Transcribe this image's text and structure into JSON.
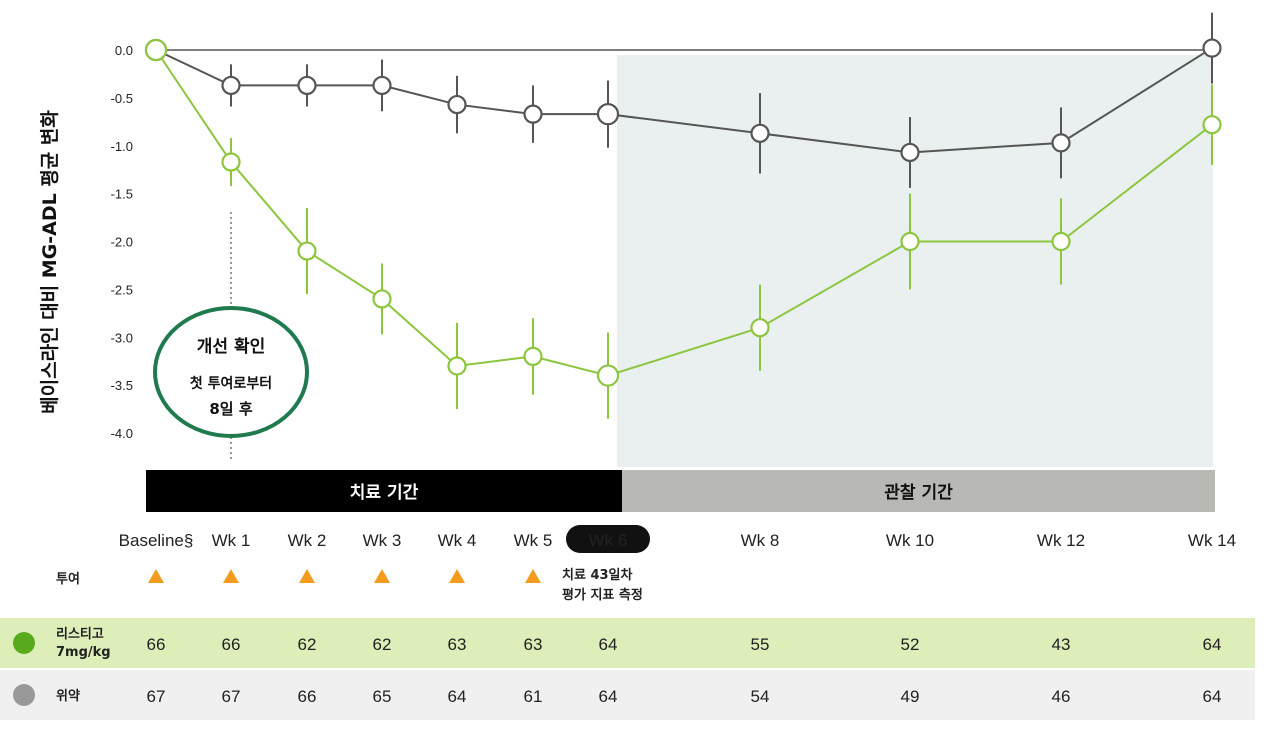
{
  "chart_data": {
    "type": "line",
    "ylabel": "베이스라인 대비 MG-ADL 평균 변화",
    "ylim": [
      -4.0,
      0.0
    ],
    "yticks": [
      "0.0",
      "-0.5",
      "-1.0",
      "-1.5",
      "-2.0",
      "-2.5",
      "-3.0",
      "-3.5",
      "-4.0"
    ],
    "categories": [
      "Baseline§",
      "Wk 1",
      "Wk 2",
      "Wk 3",
      "Wk 4",
      "Wk 5",
      "Wk 6",
      "Wk 8",
      "Wk 10",
      "Wk 12",
      "Wk 14"
    ],
    "x": [
      0,
      1,
      2,
      3,
      4,
      5,
      6,
      8,
      10,
      12,
      14
    ],
    "series": [
      {
        "name": "위약",
        "color": "#555555",
        "values": [
          0.0,
          -0.37,
          -0.37,
          -0.37,
          -0.57,
          -0.67,
          -0.67,
          -0.87,
          -1.07,
          -0.97,
          0.02
        ],
        "errors": [
          0.0,
          0.22,
          0.22,
          0.27,
          0.3,
          0.3,
          0.35,
          0.42,
          0.37,
          0.37,
          0.37
        ]
      },
      {
        "name": "리스티고 7mg/kg",
        "color": "#8cc63f",
        "values": [
          0.0,
          -1.17,
          -2.1,
          -2.6,
          -3.3,
          -3.2,
          -3.4,
          -2.9,
          -2.0,
          -2.0,
          -0.78
        ],
        "errors": [
          0.0,
          0.25,
          0.45,
          0.37,
          0.45,
          0.4,
          0.45,
          0.45,
          0.5,
          0.45,
          0.42
        ]
      }
    ],
    "bands": [
      {
        "label": "치료 기간",
        "x_from": 0,
        "x_to": 6,
        "color": "#000000",
        "text_color": "#ffffff"
      },
      {
        "label": "관찰 기간",
        "x_from": 6,
        "x_to": 14,
        "color": "#b8b8b4",
        "text_color": "#111111"
      }
    ],
    "observation_shade": "#eaf0ef",
    "highlight_tick": "Wk 6",
    "dosing": {
      "label": "투여",
      "at": [
        0,
        1,
        2,
        3,
        4,
        5
      ],
      "marker_color": "#f29b1d",
      "note_line1": "치료 43일차",
      "note_line2": "평가 지표 측정"
    },
    "callout": {
      "title": "개선 확인",
      "line1": "첫 투여로부터",
      "line2": "8일 후",
      "at_x": 1
    },
    "table": {
      "rows": [
        {
          "label_line1": "리스티고",
          "label_line2": "7mg/kg",
          "dot_color": "#5aaa1e",
          "bg": "#ddeeb8",
          "values": [
            "66",
            "66",
            "62",
            "62",
            "63",
            "63",
            "64",
            "55",
            "52",
            "43",
            "64"
          ]
        },
        {
          "label_line1": "위약",
          "label_line2": "",
          "dot_color": "#999999",
          "bg": "#f0f0f0",
          "values": [
            "67",
            "67",
            "66",
            "65",
            "64",
            "61",
            "64",
            "54",
            "49",
            "46",
            "64"
          ]
        }
      ]
    }
  }
}
